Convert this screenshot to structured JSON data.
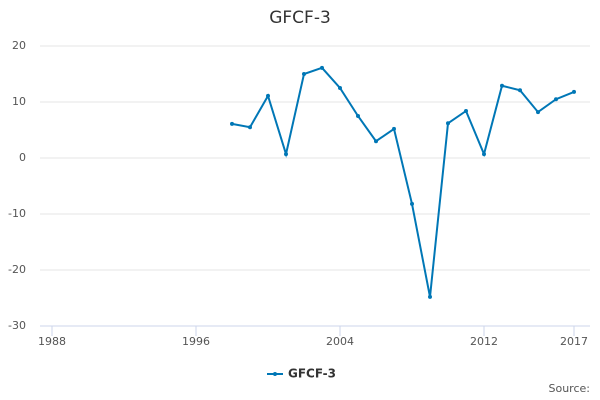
{
  "chart_data": {
    "type": "line",
    "title": "GFCF-3",
    "x": [
      1998,
      1999,
      2000,
      2001,
      2002,
      2003,
      2004,
      2005,
      2006,
      2007,
      2008,
      2009,
      2010,
      2011,
      2012,
      2013,
      2014,
      2015,
      2016,
      2017
    ],
    "series": [
      {
        "name": "GFCF-3",
        "color": "#0077b6",
        "values": [
          6.1,
          5.5,
          11.1,
          0.7,
          15.0,
          16.1,
          12.5,
          7.5,
          3.0,
          5.2,
          -8.2,
          -24.8,
          6.2,
          8.4,
          0.7,
          12.9,
          12.1,
          8.2,
          10.5,
          11.8
        ]
      }
    ],
    "xlim": [
      1988,
      2017
    ],
    "xticks": [
      1988,
      1996,
      2004,
      2012,
      2017
    ],
    "ylim": [
      -30,
      20
    ],
    "yticks": [
      -30,
      -20,
      -10,
      0,
      10,
      20
    ],
    "grid": true,
    "legend": "bottom",
    "source": "Source:"
  }
}
